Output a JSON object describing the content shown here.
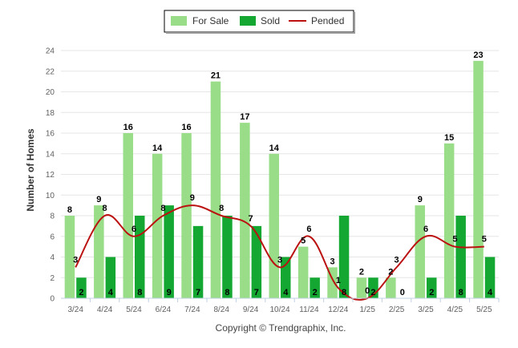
{
  "chart_data": {
    "type": "bar",
    "title": "",
    "xlabel": "",
    "ylabel": "Number of Homes",
    "ylim": [
      0,
      24
    ],
    "yticks": [
      0,
      2,
      4,
      6,
      8,
      10,
      12,
      14,
      16,
      18,
      20,
      22,
      24
    ],
    "grid": true,
    "legend_position": "top-center",
    "categories": [
      "3/24",
      "4/24",
      "5/24",
      "6/24",
      "7/24",
      "8/24",
      "9/24",
      "10/24",
      "11/24",
      "12/24",
      "1/25",
      "2/25",
      "3/25",
      "4/25",
      "5/25"
    ],
    "series": [
      {
        "name": "For Sale",
        "kind": "bar",
        "color": "#99dd88",
        "values": [
          8,
          9,
          16,
          14,
          16,
          21,
          17,
          14,
          5,
          3,
          2,
          2,
          9,
          15,
          23
        ]
      },
      {
        "name": "Sold",
        "kind": "bar",
        "color": "#14a833",
        "values": [
          2,
          4,
          8,
          9,
          7,
          8,
          7,
          4,
          2,
          8,
          2,
          0,
          2,
          8,
          4
        ]
      },
      {
        "name": "Pended",
        "kind": "line",
        "color": "#bb1111",
        "values": [
          3,
          8,
          6,
          8,
          9,
          8,
          7,
          3,
          6,
          1,
          0,
          3,
          6,
          5,
          5
        ]
      }
    ]
  },
  "footer": {
    "credit": "Copyright © Trendgraphix, Inc."
  }
}
